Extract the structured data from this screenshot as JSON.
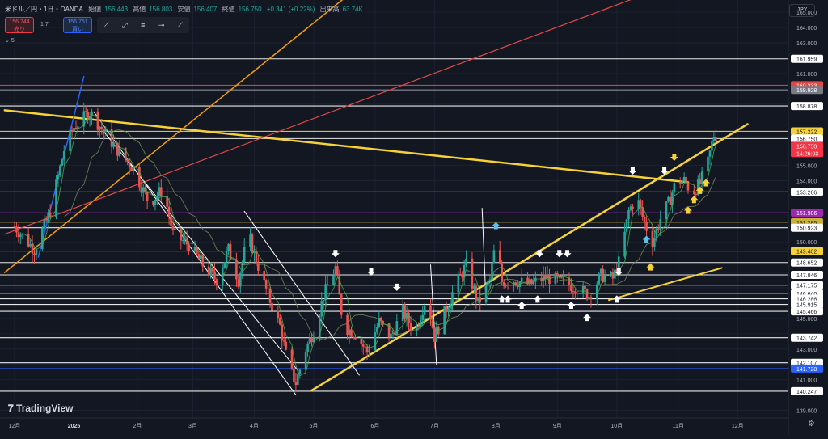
{
  "header": {
    "symbol": "米ドル／円・1日・OANDA",
    "open_label": "始値",
    "open": "156.443",
    "high_label": "高値",
    "high": "156.803",
    "low_label": "安値",
    "low": "156.407",
    "close_label": "終値",
    "close": "156.750",
    "change": "+0.341 (+0.22%)",
    "volume_label": "出来高",
    "volume": "63.74K"
  },
  "trade": {
    "sell_price": "156.744",
    "sell_label": "売り",
    "spread": "1.7",
    "buy_price": "156.761",
    "buy_label": "買い"
  },
  "indicator_label": "5",
  "currency": "JPY",
  "brand": "TradingView",
  "colors": {
    "up": "#26a69a",
    "down": "#ef5350",
    "yellow": "#f5d23a",
    "white": "#ffffff",
    "orange": "#f59e0b",
    "red": "#e04848",
    "blue": "#2962ff",
    "purple": "#9c27b0"
  },
  "chart_data": {
    "type": "candlestick",
    "ylim": [
      138.5,
      165.8
    ],
    "y_ticks": [
      139.0,
      140.0,
      141.0,
      142.0,
      143.0,
      144.0,
      145.0,
      146.0,
      147.0,
      148.0,
      150.0,
      151.0,
      154.0,
      155.0,
      156.0,
      159.0,
      161.0,
      163.0,
      164.0,
      165.0
    ],
    "x_ticks": [
      {
        "label": "12月",
        "day": 0
      },
      {
        "label": "2025",
        "day": 30
      },
      {
        "label": "2月",
        "day": 62
      },
      {
        "label": "3月",
        "day": 90
      },
      {
        "label": "4月",
        "day": 121
      },
      {
        "label": "5月",
        "day": 151
      },
      {
        "label": "6月",
        "day": 182
      },
      {
        "label": "7月",
        "day": 212
      },
      {
        "label": "8月",
        "day": 243
      },
      {
        "label": "9月",
        "day": 274
      },
      {
        "label": "10月",
        "day": 304
      },
      {
        "label": "11月",
        "day": 335
      },
      {
        "label": "12月",
        "day": 365
      }
    ],
    "horizontal_levels": [
      {
        "price": 161.959,
        "label": "161.959",
        "color": "#ffffff",
        "badge": "#ffffff"
      },
      {
        "price": 160.233,
        "label": "160.233",
        "color": "#e04848",
        "badge": "#e04848"
      },
      {
        "price": 159.928,
        "label": "159.928",
        "color": "#9598a1",
        "badge": "#787b86"
      },
      {
        "price": 158.878,
        "label": "158.878",
        "color": "#ffffff",
        "badge": "#ffffff"
      },
      {
        "price": 157.222,
        "label": "157.222",
        "color": "#f5d23a",
        "badge": "#f5d23a"
      },
      {
        "price": 156.75,
        "label": "156.750",
        "color": "#ffffff",
        "badge": "#ffffff"
      },
      {
        "price": 153.266,
        "label": "153.266",
        "color": "#ffffff",
        "badge": "#ffffff"
      },
      {
        "price": 151.906,
        "label": "151.906",
        "color": "#9c27b0",
        "badge": "#9c27b0"
      },
      {
        "price": 151.285,
        "label": "151.285",
        "color": "#c9b037",
        "badge": "#c9b037"
      },
      {
        "price": 150.923,
        "label": "150.923",
        "color": "#ffffff",
        "badge": "#ffffff"
      },
      {
        "price": 149.402,
        "label": "149.402",
        "color": "#f5d23a",
        "badge": "#f5d23a"
      },
      {
        "price": 148.652,
        "label": "148.652",
        "color": "#ffffff",
        "badge": "#ffffff"
      },
      {
        "price": 147.846,
        "label": "147.846",
        "color": "#ffffff",
        "badge": "#ffffff"
      },
      {
        "price": 147.175,
        "label": "147.175",
        "color": "#ffffff",
        "badge": "#ffffff"
      },
      {
        "price": 146.64,
        "label": "146.640",
        "color": "#ffffff",
        "badge": "#ffffff"
      },
      {
        "price": 146.286,
        "label": "146.286",
        "color": "#ffffff",
        "badge": "#ffffff"
      },
      {
        "price": 145.915,
        "label": "145.915",
        "color": "#ffffff",
        "badge": "#ffffff"
      },
      {
        "price": 145.466,
        "label": "145.466",
        "color": "#ffffff",
        "badge": "#ffffff"
      },
      {
        "price": 143.742,
        "label": "143.742",
        "color": "#ffffff",
        "badge": "#ffffff"
      },
      {
        "price": 142.107,
        "label": "142.107",
        "color": "#ffffff",
        "badge": "#ffffff"
      },
      {
        "price": 141.728,
        "label": "141.728",
        "color": "#2962ff",
        "badge": "#2962ff"
      },
      {
        "price": 140.247,
        "label": "140.247",
        "color": "#ffffff",
        "badge": "#ffffff"
      }
    ],
    "last_price": {
      "price": 156.75,
      "label": "156.750",
      "countdown": "14:26:03",
      "color": "#f23645"
    },
    "trend_lines": [
      {
        "color": "#f5d23a",
        "width": 2.5,
        "from": [
          -5,
          158.6
        ],
        "to": [
          340,
          153.9
        ]
      },
      {
        "color": "#f5d23a",
        "width": 2.5,
        "from": [
          150,
          140.3
        ],
        "to": [
          370,
          157.7
        ]
      },
      {
        "color": "#f5d23a",
        "width": 2,
        "from": [
          300,
          146.2
        ],
        "to": [
          357,
          148.3
        ]
      },
      {
        "color": "#f59e0b",
        "width": 1.5,
        "from": [
          -5,
          148.0
        ],
        "to": [
          172,
          166.5
        ]
      },
      {
        "color": "#e04848",
        "width": 1.2,
        "from": [
          -5,
          150.5
        ],
        "to": [
          325,
          166.5
        ]
      },
      {
        "color": "#2962ff",
        "width": 1.5,
        "from": [
          12,
          149.0
        ],
        "to": [
          35,
          160.8
        ]
      },
      {
        "color": "#ffffff",
        "width": 1,
        "from": [
          40,
          158.5
        ],
        "to": [
          142,
          140.0
        ]
      },
      {
        "color": "#ffffff",
        "width": 1,
        "from": [
          45,
          157.2
        ],
        "to": [
          143,
          141.6
        ]
      },
      {
        "color": "#ffffff",
        "width": 1,
        "from": [
          116,
          152.0
        ],
        "to": [
          174,
          141.3
        ]
      },
      {
        "color": "#ffffff",
        "width": 1,
        "from": [
          236,
          152.2
        ],
        "to": [
          238,
          146.0
        ]
      },
      {
        "color": "#ffffff",
        "width": 1,
        "from": [
          210,
          148.5
        ],
        "to": [
          213,
          142.0
        ]
      }
    ],
    "arrows": [
      {
        "day": 162,
        "price": 149.1,
        "dir": "down",
        "color": "#ffffff"
      },
      {
        "day": 180,
        "price": 147.9,
        "dir": "down",
        "color": "#ffffff"
      },
      {
        "day": 193,
        "price": 146.9,
        "dir": "down",
        "color": "#ffffff"
      },
      {
        "day": 265,
        "price": 149.1,
        "dir": "down",
        "color": "#ffffff"
      },
      {
        "day": 275,
        "price": 149.1,
        "dir": "down",
        "color": "#ffffff"
      },
      {
        "day": 279,
        "price": 149.1,
        "dir": "down",
        "color": "#ffffff"
      },
      {
        "day": 305,
        "price": 147.9,
        "dir": "down",
        "color": "#ffffff"
      },
      {
        "day": 312,
        "price": 154.5,
        "dir": "down",
        "color": "#ffffff"
      },
      {
        "day": 328,
        "price": 154.5,
        "dir": "down",
        "color": "#ffffff"
      },
      {
        "day": 333,
        "price": 155.4,
        "dir": "down",
        "color": "#f5d23a"
      },
      {
        "day": 246,
        "price": 146.4,
        "dir": "up",
        "color": "#ffffff"
      },
      {
        "day": 249,
        "price": 146.4,
        "dir": "up",
        "color": "#ffffff"
      },
      {
        "day": 256,
        "price": 146.0,
        "dir": "up",
        "color": "#ffffff"
      },
      {
        "day": 264,
        "price": 146.4,
        "dir": "up",
        "color": "#ffffff"
      },
      {
        "day": 281,
        "price": 146.0,
        "dir": "up",
        "color": "#ffffff"
      },
      {
        "day": 289,
        "price": 145.2,
        "dir": "up",
        "color": "#ffffff"
      },
      {
        "day": 304,
        "price": 146.4,
        "dir": "up",
        "color": "#ffffff"
      },
      {
        "day": 319,
        "price": 150.3,
        "dir": "up",
        "color": "#5bc0eb"
      },
      {
        "day": 243,
        "price": 151.2,
        "dir": "up",
        "color": "#5bc0eb"
      },
      {
        "day": 321,
        "price": 148.5,
        "dir": "up",
        "color": "#f5d23a"
      },
      {
        "day": 340,
        "price": 152.2,
        "dir": "up",
        "color": "#f5d23a"
      },
      {
        "day": 343,
        "price": 152.9,
        "dir": "up",
        "color": "#f5d23a"
      },
      {
        "day": 346,
        "price": 153.5,
        "dir": "up",
        "color": "#f5d23a"
      },
      {
        "day": 349,
        "price": 154.0,
        "dir": "up",
        "color": "#f5d23a"
      }
    ],
    "price_keyframes": [
      [
        0,
        151.0
      ],
      [
        10,
        149.5
      ],
      [
        18,
        152.0
      ],
      [
        25,
        156.0
      ],
      [
        30,
        157.5
      ],
      [
        38,
        158.5
      ],
      [
        45,
        157.2
      ],
      [
        52,
        156.0
      ],
      [
        60,
        154.8
      ],
      [
        68,
        152.5
      ],
      [
        75,
        153.5
      ],
      [
        80,
        150.5
      ],
      [
        88,
        149.8
      ],
      [
        95,
        148.5
      ],
      [
        102,
        147.5
      ],
      [
        108,
        149.5
      ],
      [
        113,
        147.5
      ],
      [
        118,
        150.5
      ],
      [
        122,
        148.8
      ],
      [
        128,
        146.5
      ],
      [
        134,
        144.5
      ],
      [
        138,
        142.0
      ],
      [
        142,
        140.8
      ],
      [
        147,
        143.0
      ],
      [
        152,
        144.5
      ],
      [
        156,
        146.5
      ],
      [
        162,
        148.3
      ],
      [
        166,
        144.5
      ],
      [
        172,
        144.0
      ],
      [
        178,
        142.8
      ],
      [
        184,
        144.8
      ],
      [
        190,
        143.8
      ],
      [
        196,
        145.5
      ],
      [
        202,
        144.0
      ],
      [
        208,
        146.5
      ],
      [
        212,
        143.8
      ],
      [
        216,
        145.0
      ],
      [
        222,
        147.0
      ],
      [
        228,
        148.5
      ],
      [
        234,
        146.0
      ],
      [
        240,
        147.5
      ],
      [
        243,
        150.2
      ],
      [
        246,
        147.4
      ],
      [
        252,
        147.5
      ],
      [
        260,
        147.2
      ],
      [
        268,
        147.7
      ],
      [
        276,
        147.4
      ],
      [
        284,
        147.0
      ],
      [
        290,
        146.5
      ],
      [
        296,
        147.8
      ],
      [
        302,
        147.6
      ],
      [
        306,
        149.0
      ],
      [
        310,
        152.0
      ],
      [
        314,
        153.0
      ],
      [
        318,
        151.2
      ],
      [
        322,
        150.0
      ],
      [
        326,
        151.5
      ],
      [
        330,
        152.5
      ],
      [
        334,
        154.0
      ],
      [
        338,
        154.0
      ],
      [
        342,
        153.2
      ],
      [
        346,
        153.8
      ],
      [
        350,
        155.2
      ],
      [
        353,
        157.0
      ],
      [
        356,
        156.75
      ]
    ]
  }
}
